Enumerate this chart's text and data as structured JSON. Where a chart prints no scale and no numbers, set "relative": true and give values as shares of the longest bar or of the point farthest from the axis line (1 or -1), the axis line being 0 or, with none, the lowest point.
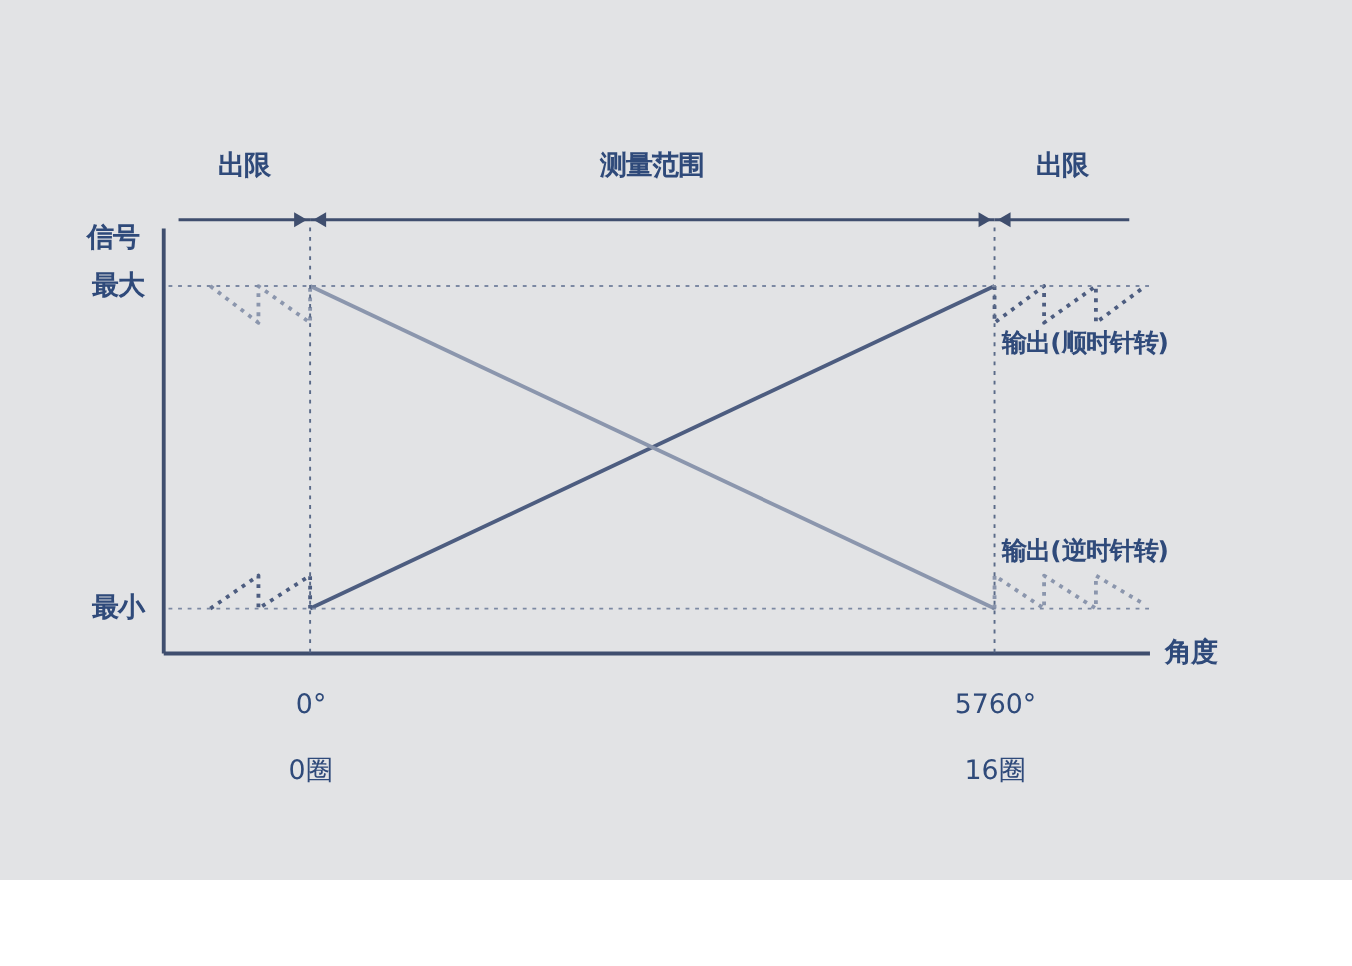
{
  "chart_data": {
    "type": "line",
    "xlabel": "角度",
    "ylabel": "信号",
    "relative": true,
    "xlim": [
      -1240,
      7060
    ],
    "xticks": [
      {
        "value": 0,
        "label": "0°"
      },
      {
        "value": 5760,
        "label": "5760°"
      }
    ],
    "grid": false,
    "marker": "none",
    "series": [
      {
        "name": "输出(顺时针转)",
        "color": "#4d5d80",
        "x": [
          0,
          5760
        ],
        "values": [
          0.12,
          1
        ]
      },
      {
        "name": "输出(逆时针转)",
        "color": "#8b96ad",
        "x": [
          0,
          5760
        ],
        "values": [
          1,
          0.12
        ]
      },
      {
        "color": "#4d5d80",
        "line_style": "dotted",
        "x": [
          -840,
          -435,
          -435,
          0,
          0
        ],
        "values": [
          0.12,
          0.21,
          0.12,
          0.21,
          0.12
        ]
      },
      {
        "color": "#4d5d80",
        "line_style": "dotted",
        "x": [
          5760,
          5760,
          6177,
          6177,
          6613,
          6613,
          7030
        ],
        "values": [
          1,
          0.9,
          1,
          0.9,
          1,
          0.9,
          1
        ]
      },
      {
        "color": "#8b96ad",
        "line_style": "dotted",
        "x": [
          -840,
          -435,
          -435,
          0,
          0
        ],
        "values": [
          1,
          0.9,
          1,
          0.9,
          1
        ]
      },
      {
        "color": "#8b96ad",
        "line_style": "dotted",
        "x": [
          5760,
          5760,
          6177,
          6177,
          6613,
          6613,
          7030
        ],
        "values": [
          0.12,
          0.21,
          0.12,
          0.21,
          0.12,
          0.21,
          0.13
        ]
      }
    ],
    "ref_lines": [
      {
        "axis": "x",
        "value": 0,
        "line_style": "dotted",
        "color": "#5a6a88"
      },
      {
        "axis": "x",
        "value": 5760,
        "line_style": "dotted",
        "color": "#5a6a88"
      },
      {
        "axis": "y",
        "value": 0.12,
        "label": "最小",
        "line_style": "dotted",
        "color": "#7c89a3"
      },
      {
        "axis": "y",
        "value": 1,
        "label": "最大",
        "line_style": "dotted",
        "color": "#7c89a3"
      }
    ],
    "annotations": [
      "出限",
      "测量范围",
      "出限",
      "0圈",
      "16圈"
    ]
  }
}
